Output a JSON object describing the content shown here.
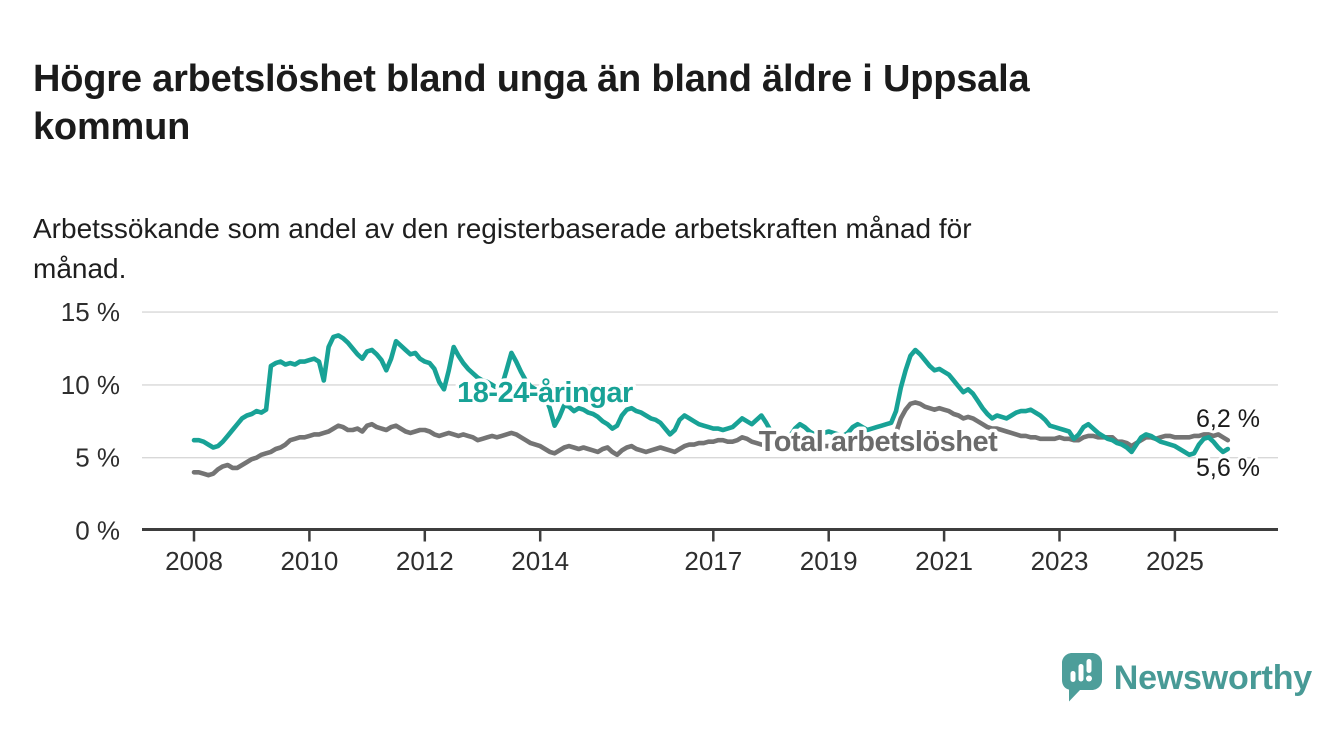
{
  "title": "Högre arbetslöshet bland unga än bland äldre i Uppsala kommun",
  "title_lines": [
    "Högre arbetslöshet bland unga än bland äldre i Uppsala",
    "kommun"
  ],
  "subtitle": "Arbetssökande som andel av den registerbaserade arbetskraften månad för månad.",
  "subtitle_lines": [
    "Arbetssökande som andel av den registerbaserade arbetskraften månad för",
    "månad."
  ],
  "logo": {
    "text": "Newsworthy",
    "icon": "newsworthy-speech-bubble-bar-chart-icon",
    "color": "#489a96"
  },
  "chart_data": {
    "type": "line",
    "unit": "%",
    "frequency": "monthly",
    "x_start": {
      "year": 2008,
      "month": 1
    },
    "x_end": {
      "year": 2025,
      "month": 12
    },
    "ylim": [
      0,
      15
    ],
    "grid": "horizontal",
    "legend_position": "inline-labels",
    "y_ticks": [
      {
        "value": 0,
        "label": "0 %"
      },
      {
        "value": 5,
        "label": "5 %"
      },
      {
        "value": 10,
        "label": "10 %"
      },
      {
        "value": 15,
        "label": "15 %"
      }
    ],
    "x_ticks": [
      {
        "year": 2008,
        "label": "2008"
      },
      {
        "year": 2010,
        "label": "2010"
      },
      {
        "year": 2012,
        "label": "2012"
      },
      {
        "year": 2014,
        "label": "2014"
      },
      {
        "year": 2017,
        "label": "2017"
      },
      {
        "year": 2019,
        "label": "2019"
      },
      {
        "year": 2021,
        "label": "2021"
      },
      {
        "year": 2023,
        "label": "2023"
      },
      {
        "year": 2025,
        "label": "2025"
      }
    ],
    "style": {
      "teal": "#18a296",
      "gray_line": "#747474",
      "gray_label": "#6b6b6b",
      "grid_color": "#d8d8d8",
      "axis_color": "#3d3d3d",
      "text_color": "#1b1b1b"
    },
    "series": [
      {
        "id": "youth",
        "name": "18-24-åringar",
        "color": "#18a296",
        "end_value_label": "5,6 %",
        "values": [
          6.2,
          6.2,
          6.1,
          5.9,
          5.7,
          5.8,
          6.1,
          6.5,
          6.9,
          7.3,
          7.7,
          7.9,
          8.0,
          8.2,
          8.1,
          8.3,
          11.3,
          11.5,
          11.6,
          11.4,
          11.5,
          11.4,
          11.6,
          11.6,
          11.7,
          11.8,
          11.6,
          10.3,
          12.6,
          13.3,
          13.4,
          13.2,
          12.9,
          12.5,
          12.1,
          11.8,
          12.3,
          12.4,
          12.1,
          11.7,
          11.0,
          11.8,
          13.0,
          12.7,
          12.4,
          12.1,
          12.2,
          11.8,
          11.6,
          11.5,
          11.1,
          10.2,
          9.7,
          11.0,
          12.6,
          12.0,
          11.5,
          11.1,
          10.8,
          10.5,
          10.3,
          10.2,
          10.0,
          9.8,
          9.9,
          11.0,
          12.2,
          11.6,
          10.9,
          10.3,
          9.9,
          9.7,
          9.5,
          9.2,
          8.4,
          7.2,
          7.8,
          8.6,
          8.5,
          8.2,
          8.4,
          8.3,
          8.1,
          8.0,
          7.8,
          7.5,
          7.3,
          7.0,
          7.2,
          7.9,
          8.3,
          8.4,
          8.2,
          8.1,
          7.9,
          7.7,
          7.6,
          7.4,
          7.0,
          6.6,
          6.9,
          7.6,
          7.9,
          7.7,
          7.5,
          7.3,
          7.2,
          7.1,
          7.0,
          7.0,
          6.9,
          7.0,
          7.1,
          7.4,
          7.7,
          7.5,
          7.3,
          7.6,
          7.9,
          7.4,
          6.8,
          6.6,
          6.4,
          6.3,
          6.5,
          7.0,
          7.3,
          7.1,
          6.8,
          6.6,
          6.7,
          6.7,
          6.8,
          6.7,
          6.6,
          6.5,
          6.7,
          7.1,
          7.3,
          7.1,
          6.9,
          7.0,
          7.1,
          7.2,
          7.3,
          7.4,
          8.2,
          9.8,
          11.0,
          12.0,
          12.4,
          12.1,
          11.7,
          11.3,
          11.0,
          11.1,
          10.9,
          10.7,
          10.3,
          9.9,
          9.5,
          9.7,
          9.4,
          8.9,
          8.4,
          8.0,
          7.7,
          7.9,
          7.8,
          7.7,
          7.9,
          8.1,
          8.2,
          8.2,
          8.3,
          8.1,
          7.9,
          7.6,
          7.2,
          7.1,
          7.0,
          6.9,
          6.8,
          6.3,
          6.6,
          7.1,
          7.3,
          7.0,
          6.7,
          6.5,
          6.3,
          6.2,
          6.0,
          5.9,
          5.7,
          5.4,
          5.9,
          6.4,
          6.6,
          6.5,
          6.3,
          6.1,
          6.0,
          5.9,
          5.8,
          5.6,
          5.4,
          5.2,
          5.3,
          5.9,
          6.3,
          6.4,
          6.1,
          5.7,
          5.4,
          5.6
        ]
      },
      {
        "id": "total",
        "name": "Total arbetslöshet",
        "color": "#747474",
        "end_value_label": "6,2 %",
        "values": [
          4.0,
          4.0,
          3.9,
          3.8,
          3.9,
          4.2,
          4.4,
          4.5,
          4.3,
          4.3,
          4.5,
          4.7,
          4.9,
          5.0,
          5.2,
          5.3,
          5.4,
          5.6,
          5.7,
          5.9,
          6.2,
          6.3,
          6.4,
          6.4,
          6.5,
          6.6,
          6.6,
          6.7,
          6.8,
          7.0,
          7.2,
          7.1,
          6.9,
          6.9,
          7.0,
          6.8,
          7.2,
          7.3,
          7.1,
          7.0,
          6.9,
          7.1,
          7.2,
          7.0,
          6.8,
          6.7,
          6.8,
          6.9,
          6.9,
          6.8,
          6.6,
          6.5,
          6.6,
          6.7,
          6.6,
          6.5,
          6.6,
          6.5,
          6.4,
          6.2,
          6.3,
          6.4,
          6.5,
          6.4,
          6.5,
          6.6,
          6.7,
          6.6,
          6.4,
          6.2,
          6.0,
          5.9,
          5.8,
          5.6,
          5.4,
          5.3,
          5.5,
          5.7,
          5.8,
          5.7,
          5.6,
          5.7,
          5.6,
          5.5,
          5.4,
          5.6,
          5.7,
          5.4,
          5.2,
          5.5,
          5.7,
          5.8,
          5.6,
          5.5,
          5.4,
          5.5,
          5.6,
          5.7,
          5.6,
          5.5,
          5.4,
          5.6,
          5.8,
          5.9,
          5.9,
          6.0,
          6.0,
          6.1,
          6.1,
          6.2,
          6.2,
          6.1,
          6.1,
          6.2,
          6.4,
          6.3,
          6.1,
          6.0,
          5.9,
          5.9,
          5.9,
          5.9,
          5.8,
          5.8,
          5.7,
          5.9,
          6.0,
          5.9,
          5.8,
          5.7,
          5.7,
          5.8,
          5.8,
          5.8,
          5.7,
          5.7,
          5.8,
          5.9,
          6.0,
          5.9,
          5.9,
          5.9,
          5.9,
          6.0,
          6.0,
          6.1,
          6.7,
          7.7,
          8.3,
          8.7,
          8.8,
          8.7,
          8.5,
          8.4,
          8.3,
          8.4,
          8.3,
          8.2,
          8.0,
          7.9,
          7.7,
          7.8,
          7.7,
          7.5,
          7.3,
          7.1,
          7.0,
          7.0,
          6.9,
          6.8,
          6.7,
          6.6,
          6.5,
          6.5,
          6.4,
          6.4,
          6.3,
          6.3,
          6.3,
          6.3,
          6.4,
          6.3,
          6.3,
          6.2,
          6.2,
          6.4,
          6.5,
          6.5,
          6.4,
          6.4,
          6.4,
          6.4,
          6.1,
          6.1,
          6.0,
          5.8,
          6.0,
          6.2,
          6.4,
          6.4,
          6.3,
          6.4,
          6.5,
          6.5,
          6.4,
          6.4,
          6.4,
          6.4,
          6.5,
          6.5,
          6.6,
          6.6,
          6.5,
          6.6,
          6.4,
          6.2
        ]
      }
    ],
    "annotations": [
      {
        "text": "6,2 %",
        "series": "total",
        "value": 6.2
      },
      {
        "text": "5,6 %",
        "series": "youth",
        "value": 5.6
      }
    ]
  }
}
